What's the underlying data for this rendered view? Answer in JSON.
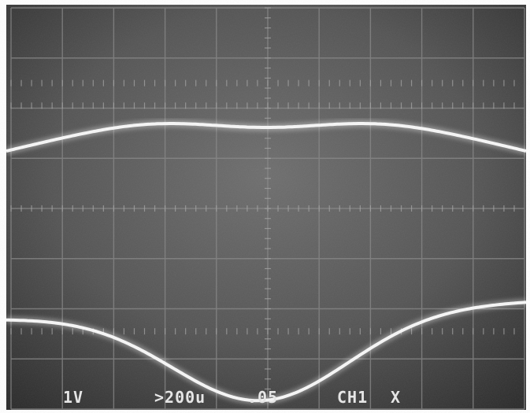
{
  "readouts": {
    "volts_per_div": "1V",
    "timebase": ">200u",
    "timebase_suffix": ".05",
    "channel": "CH1",
    "mode": "X"
  },
  "colors": {
    "screen_dark": "#2e2e2e",
    "screen_light": "#6a6a6a",
    "trace": "#f2f2f2",
    "graticule": "#8a8a8a"
  }
}
